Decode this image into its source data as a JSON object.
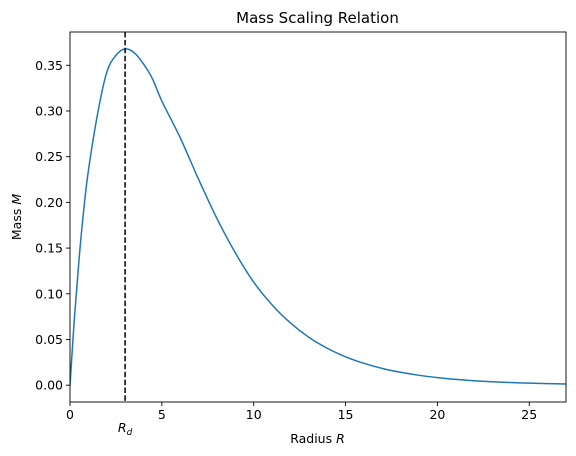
{
  "chart_data": {
    "type": "line",
    "title": "Mass Scaling Relation",
    "xlabel": {
      "text": "Radius ",
      "var": "R"
    },
    "ylabel": {
      "text": "Mass ",
      "var": "M"
    },
    "xlim": [
      0,
      27
    ],
    "ylim": [
      -0.0184,
      0.3864
    ],
    "xticks": [
      0,
      5,
      10,
      15,
      20,
      25
    ],
    "yticks": [
      0.0,
      0.05,
      0.1,
      0.15,
      0.2,
      0.25,
      0.3,
      0.35
    ],
    "ytick_labels": [
      "0.00",
      "0.05",
      "0.10",
      "0.15",
      "0.20",
      "0.25",
      "0.30",
      "0.35"
    ],
    "grid": false,
    "series": [
      {
        "color": "#1f77b4",
        "x": [
          0,
          0.25,
          0.5,
          0.75,
          1,
          1.5,
          2,
          2.5,
          3,
          3.5,
          4,
          4.5,
          5,
          6,
          7,
          8,
          9,
          10,
          11,
          12,
          13,
          14,
          15,
          16,
          17,
          18,
          19,
          20,
          21,
          22,
          23,
          24,
          25,
          26,
          27
        ],
        "y": [
          0.0,
          0.0762,
          0.1396,
          0.1921,
          0.2346,
          0.2967,
          0.3423,
          0.3608,
          0.3679,
          0.3636,
          0.3514,
          0.3347,
          0.3109,
          0.2707,
          0.2252,
          0.1823,
          0.1448,
          0.1127,
          0.0879,
          0.0681,
          0.0524,
          0.0404,
          0.0311,
          0.0239,
          0.0183,
          0.0141,
          0.0108,
          0.0083,
          0.0063,
          0.0049,
          0.0037,
          0.0029,
          0.0022,
          0.0017,
          0.0013
        ]
      }
    ],
    "vline": {
      "x": 3.0,
      "style": "dashed",
      "color": "#000000",
      "label_var": "R",
      "label_sub": "d"
    }
  }
}
